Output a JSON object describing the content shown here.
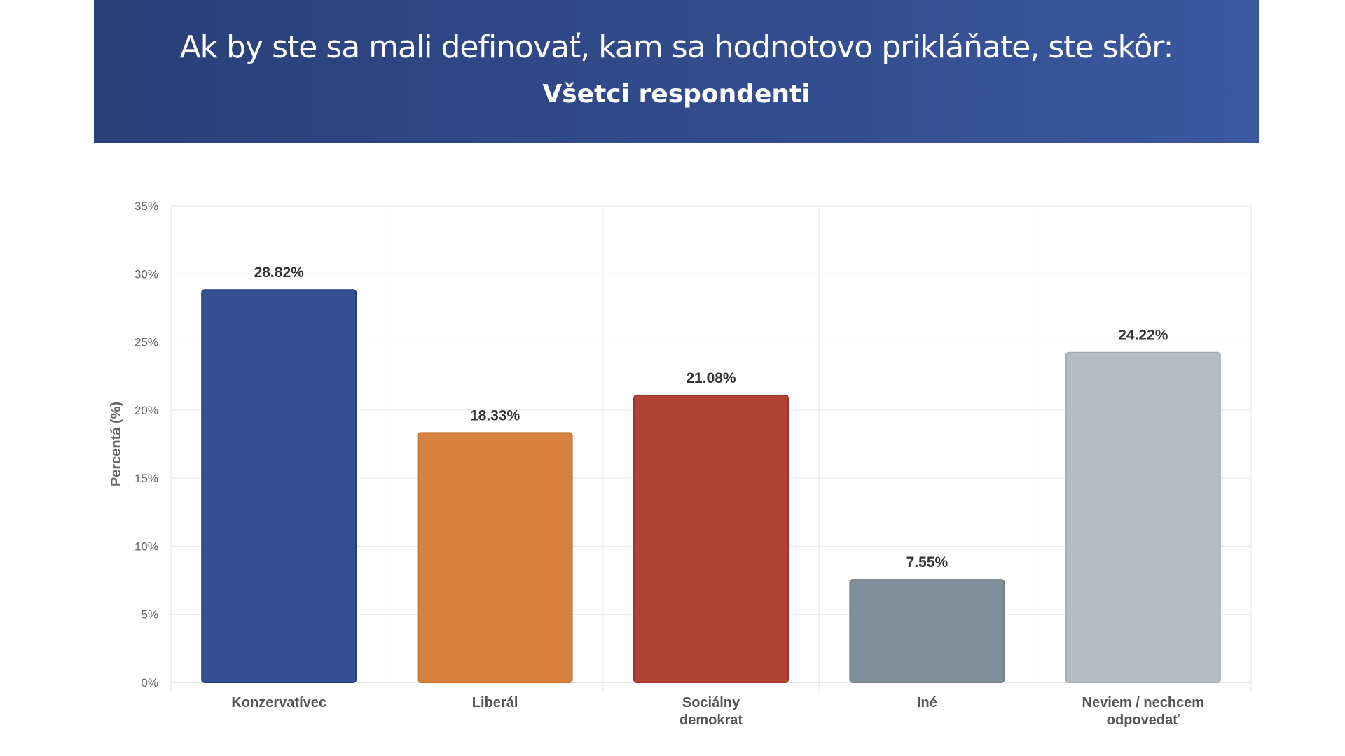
{
  "header": {
    "title": "Ak by ste sa mali definovať, kam sa hodnotovo prikláňate, ste skôr:",
    "subtitle": "Všetci respondenti"
  },
  "chart_data": {
    "type": "bar",
    "title": "Ak by ste sa mali definovať, kam sa hodnotovo prikláňate, ste skôr:",
    "subtitle": "Všetci respondenti",
    "categories": [
      [
        "Konzervatívec"
      ],
      [
        "Liberál"
      ],
      [
        "Sociálny",
        "demokrat"
      ],
      [
        "Iné"
      ],
      [
        "Neviem / nechcem",
        "odpovedať"
      ]
    ],
    "values": [
      28.82,
      18.33,
      21.08,
      7.55,
      24.22
    ],
    "data_labels": [
      "28.82%",
      "18.33%",
      "21.08%",
      "7.55%",
      "24.22%"
    ],
    "colors": [
      "#344f94",
      "#d6813d",
      "#b14234",
      "#7f8f9a",
      "#b2bdc4"
    ],
    "border_colors": [
      "#263d78",
      "#c7732f",
      "#9c3628",
      "#6e7e89",
      "#a0adb5"
    ],
    "xlabel": "",
    "ylabel": "Percentá (%)",
    "ylim": [
      0,
      35
    ],
    "yticks": [
      0,
      5,
      10,
      15,
      20,
      25,
      30,
      35
    ],
    "ytick_labels": [
      "0%",
      "5%",
      "10%",
      "15%",
      "20%",
      "25%",
      "30%",
      "35%"
    ],
    "grid": true,
    "legend": "none"
  }
}
